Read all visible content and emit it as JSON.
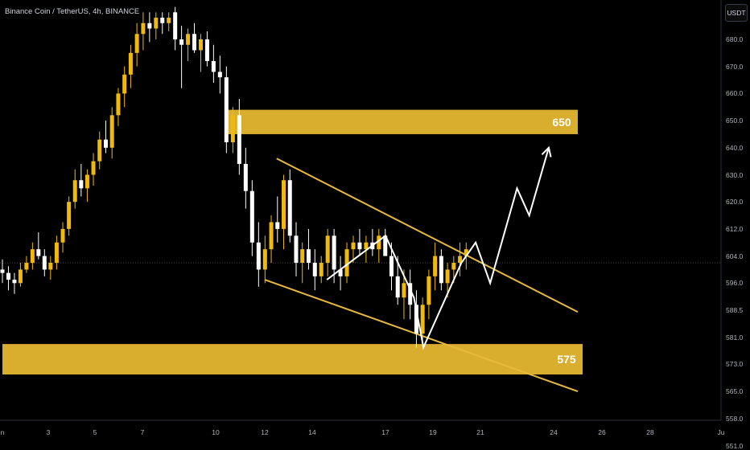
{
  "header": {
    "title": "Binance Coin / TetherUS, 4h, BINANCE"
  },
  "toolbar": {
    "currency": "USDT"
  },
  "chart_data": {
    "type": "candlestick",
    "symbol": "Binance Coin / TetherUS",
    "interval": "4h",
    "exchange": "BINANCE",
    "y_axis": {
      "ticks": [
        "680.0",
        "670.0",
        "660.0",
        "650.0",
        "640.0",
        "630.0",
        "620.0",
        "612.0",
        "604.0",
        "596.0",
        "588.5",
        "581.0",
        "573.0",
        "565.0",
        "558.0",
        "551.0"
      ],
      "range": [
        548,
        691
      ]
    },
    "x_axis": {
      "ticks": [
        "n",
        "3",
        "5",
        "7",
        "10",
        "12",
        "14",
        "17",
        "19",
        "21",
        "24",
        "26",
        "28",
        "Ju"
      ],
      "range": [
        1,
        31
      ]
    },
    "last_price": 602,
    "zones": [
      {
        "label": "650",
        "from_day": 10.5,
        "to_day": 25,
        "low": 645,
        "high": 654
      },
      {
        "label": "575",
        "from_day": 1,
        "to_day": 25.2,
        "low": 570,
        "high": 579
      }
    ],
    "trendlines": [
      {
        "from": [
          12.5,
          636
        ],
        "to": [
          25,
          588
        ]
      },
      {
        "from": [
          12,
          597
        ],
        "to": [
          25,
          565
        ]
      }
    ],
    "projection": [
      [
        14.6,
        597
      ],
      [
        17,
        610
      ],
      [
        18.2,
        592
      ],
      [
        18.6,
        578
      ],
      [
        20.2,
        602
      ],
      [
        20.8,
        608
      ],
      [
        21.4,
        596
      ],
      [
        22.5,
        625
      ],
      [
        23,
        616
      ],
      [
        23.8,
        640
      ]
    ],
    "candles": [
      [
        600,
        603,
        596,
        599
      ],
      [
        599,
        601,
        594,
        597
      ],
      [
        597,
        599,
        593,
        596
      ],
      [
        596,
        602,
        595,
        600
      ],
      [
        600,
        604,
        599,
        602
      ],
      [
        602,
        608,
        600,
        606
      ],
      [
        606,
        611,
        603,
        604
      ],
      [
        604,
        606,
        598,
        600
      ],
      [
        600,
        604,
        597,
        602
      ],
      [
        602,
        610,
        600,
        608
      ],
      [
        608,
        614,
        605,
        612
      ],
      [
        612,
        622,
        610,
        620
      ],
      [
        620,
        632,
        618,
        628
      ],
      [
        628,
        634,
        622,
        625
      ],
      [
        625,
        632,
        620,
        630
      ],
      [
        630,
        638,
        626,
        635
      ],
      [
        635,
        646,
        632,
        643
      ],
      [
        643,
        650,
        638,
        640
      ],
      [
        640,
        655,
        636,
        652
      ],
      [
        652,
        662,
        648,
        660
      ],
      [
        660,
        670,
        655,
        667
      ],
      [
        667,
        678,
        662,
        675
      ],
      [
        675,
        686,
        670,
        682
      ],
      [
        682,
        690,
        676,
        686
      ],
      [
        686,
        690,
        679,
        684
      ],
      [
        684,
        690,
        680,
        688
      ],
      [
        688,
        690,
        682,
        686
      ],
      [
        686,
        690,
        683,
        688
      ],
      [
        690,
        692,
        676,
        680
      ],
      [
        680,
        685,
        662,
        678
      ],
      [
        678,
        684,
        672,
        682
      ],
      [
        682,
        686,
        675,
        676
      ],
      [
        676,
        682,
        668,
        680
      ],
      [
        680,
        683,
        670,
        672
      ],
      [
        672,
        678,
        664,
        668
      ],
      [
        668,
        674,
        660,
        666
      ],
      [
        666,
        670,
        638,
        642
      ],
      [
        642,
        655,
        638,
        652
      ],
      [
        652,
        658,
        630,
        634
      ],
      [
        634,
        640,
        618,
        624
      ],
      [
        624,
        628,
        604,
        608
      ],
      [
        608,
        614,
        595,
        600
      ],
      [
        600,
        610,
        596,
        606
      ],
      [
        606,
        616,
        602,
        614
      ],
      [
        614,
        622,
        608,
        612
      ],
      [
        612,
        630,
        606,
        628
      ],
      [
        628,
        632,
        608,
        610
      ],
      [
        610,
        614,
        598,
        602
      ],
      [
        602,
        608,
        596,
        606
      ],
      [
        606,
        612,
        600,
        602
      ],
      [
        602,
        606,
        594,
        598
      ],
      [
        598,
        604,
        596,
        602
      ],
      [
        602,
        612,
        598,
        610
      ],
      [
        610,
        612,
        596,
        600
      ],
      [
        600,
        604,
        594,
        598
      ],
      [
        598,
        608,
        596,
        606
      ],
      [
        606,
        610,
        602,
        608
      ],
      [
        608,
        612,
        604,
        606
      ],
      [
        606,
        610,
        602,
        608
      ],
      [
        608,
        612,
        604,
        606
      ],
      [
        606,
        612,
        602,
        610
      ],
      [
        610,
        612,
        604,
        604
      ],
      [
        604,
        608,
        594,
        598
      ],
      [
        598,
        604,
        590,
        592
      ],
      [
        592,
        600,
        586,
        596
      ],
      [
        596,
        600,
        586,
        590
      ],
      [
        590,
        594,
        578,
        582
      ],
      [
        582,
        592,
        578,
        590
      ],
      [
        590,
        600,
        586,
        598
      ],
      [
        598,
        608,
        594,
        604
      ],
      [
        604,
        606,
        594,
        596
      ],
      [
        596,
        602,
        592,
        600
      ],
      [
        600,
        604,
        596,
        602
      ],
      [
        602,
        608,
        598,
        604
      ],
      [
        604,
        608,
        600,
        606
      ]
    ]
  }
}
